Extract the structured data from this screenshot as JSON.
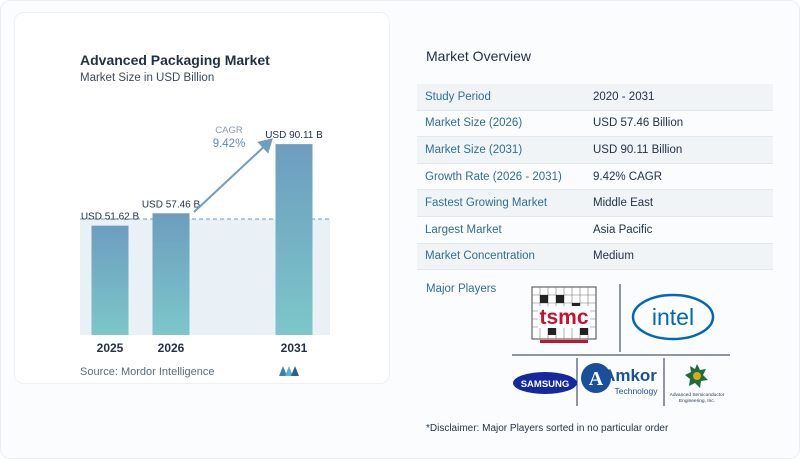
{
  "chart": {
    "title": "Advanced Packaging Market",
    "subtitle": "Market Size in USD Billion",
    "source": "Source:  Mordor Intelligence",
    "cagr_label": "CAGR",
    "cagr_value": "9.42%"
  },
  "chart_data": {
    "type": "bar",
    "categories": [
      "2025",
      "2026",
      "2031"
    ],
    "values": [
      51.62,
      57.46,
      90.11
    ],
    "value_labels": [
      "USD 51.62 B",
      "USD 57.46 B",
      "USD 90.11 B"
    ],
    "title": "Advanced Packaging Market",
    "subtitle": "Market Size in USD Billion",
    "xlabel": "",
    "ylabel": "",
    "ylim": [
      0,
      100
    ],
    "grid": false,
    "bar_color": "#6d9dbf",
    "bar_color_bottom": "#7cc7c9"
  },
  "overview": {
    "title": "Market Overview",
    "rows": [
      {
        "label": "Study Period",
        "value": "2020 - 2031"
      },
      {
        "label": "Market Size (2026)",
        "value": "USD 57.46 Billion"
      },
      {
        "label": "Market Size (2031)",
        "value": "USD 90.11 Billion"
      },
      {
        "label": "Growth Rate (2026 - 2031)",
        "value": "9.42% CAGR"
      },
      {
        "label": "Fastest Growing Market",
        "value": "Middle East"
      },
      {
        "label": "Largest Market",
        "value": "Asia Pacific"
      },
      {
        "label": "Market Concentration",
        "value": "Medium"
      }
    ]
  },
  "players": {
    "label": "Major Players",
    "logos": {
      "tsmc": "tsmc",
      "intel": "intel",
      "samsung": "SAMSUNG",
      "amkor_main": "Amkor",
      "amkor_sub": "Technology",
      "ase_line1": "Advanced Semiconductor",
      "ase_line2": "Engineering, Inc."
    }
  },
  "disclaimer": "*Disclaimer: Major Players sorted in no particular order",
  "colors": {
    "accent": "#2f6f8f",
    "tsmc_red": "#c8102e",
    "intel_blue": "#0068b5",
    "samsung_blue": "#1428a0",
    "amkor_blue": "#1a4f9c"
  }
}
